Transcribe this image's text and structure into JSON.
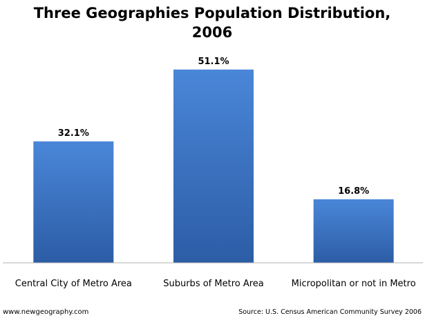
{
  "chart_data": {
    "type": "bar",
    "title_lines": [
      "Three Geographies Population Distribution,",
      "2006"
    ],
    "categories": [
      "Central City of Metro Area",
      "Suburbs of Metro Area",
      "Micropolitan or not in Metro"
    ],
    "values": [
      32.1,
      51.1,
      16.8
    ],
    "value_labels": [
      "32.1%",
      "51.1%",
      "16.8%"
    ],
    "unit": "%",
    "xlabel": "",
    "ylabel": "",
    "ylim": [
      0,
      58
    ],
    "grid": false,
    "legend": "none",
    "bar_color": "#3a72c4",
    "bar_gradient": [
      "#4a86d8",
      "#2c5da6"
    ]
  },
  "footer": {
    "website": "www.newgeography.com",
    "source": "Source:  U.S. Census American Community Survey 2006"
  }
}
